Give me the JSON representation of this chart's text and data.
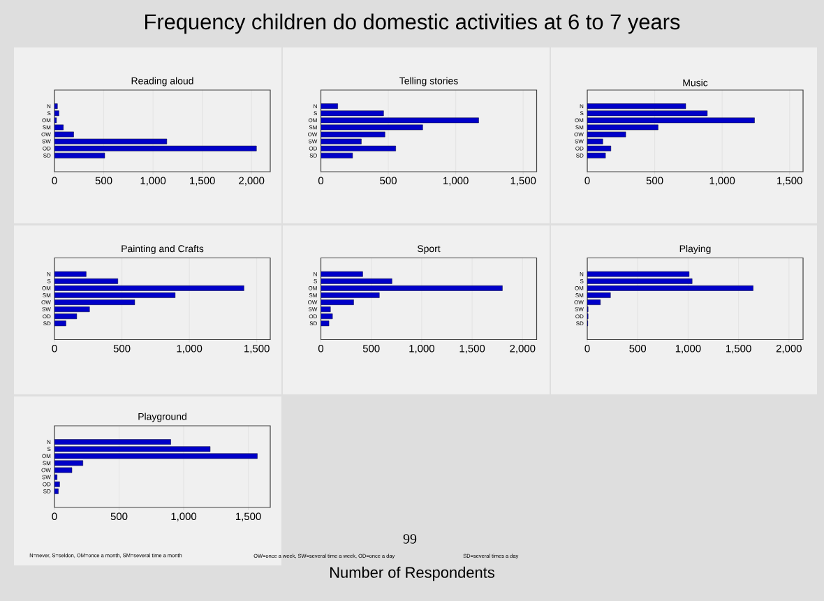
{
  "chart_data": [
    {
      "type": "bar",
      "orientation": "horizontal",
      "title": "Reading aloud",
      "categories": [
        "N",
        "S",
        "OM",
        "SM",
        "OW",
        "SW",
        "OD",
        "SD"
      ],
      "values": [
        30,
        45,
        20,
        90,
        195,
        1140,
        2050,
        510
      ],
      "color": "#0000c8",
      "xlim": [
        0,
        2190
      ],
      "xticks": [
        0,
        500,
        {
          "value": 1000,
          "label": "1,000"
        },
        {
          "value": 1500,
          "label": "1,500"
        },
        {
          "value": 2000,
          "label": "2,000"
        }
      ],
      "grid": "x"
    },
    {
      "type": "bar",
      "orientation": "horizontal",
      "title": "Telling stories",
      "categories": [
        "N",
        "S",
        "OM",
        "SM",
        "OW",
        "SW",
        "OD",
        "SD"
      ],
      "values": [
        125,
        465,
        1170,
        755,
        475,
        300,
        555,
        235
      ],
      "color": "#0000c8",
      "xlim": [
        0,
        1600
      ],
      "xticks": [
        0,
        500,
        {
          "value": 1000,
          "label": "1,000"
        },
        {
          "value": 1500,
          "label": "1,500"
        }
      ],
      "grid": "x"
    },
    {
      "type": "bar",
      "orientation": "horizontal",
      "title": "Music",
      "categories": [
        "N",
        "S",
        "OM",
        "SM",
        "OW",
        "SW",
        "OD",
        "SD"
      ],
      "values": [
        730,
        890,
        1240,
        525,
        285,
        115,
        175,
        135
      ],
      "color": "#0000c8",
      "xlim": [
        0,
        1600
      ],
      "xticks": [
        0,
        500,
        {
          "value": 1000,
          "label": "1,000"
        },
        {
          "value": 1500,
          "label": "1,500"
        }
      ],
      "grid": "x"
    },
    {
      "type": "bar",
      "orientation": "horizontal",
      "title": "Painting and Crafts",
      "categories": [
        "N",
        "S",
        "OM",
        "SM",
        "OW",
        "SW",
        "OD",
        "SD"
      ],
      "values": [
        235,
        470,
        1405,
        895,
        595,
        260,
        165,
        85
      ],
      "color": "#0000c8",
      "xlim": [
        0,
        1600
      ],
      "xticks": [
        0,
        500,
        {
          "value": 1000,
          "label": "1,000"
        },
        {
          "value": 1500,
          "label": "1,500"
        }
      ],
      "grid": "x"
    },
    {
      "type": "bar",
      "orientation": "horizontal",
      "title": "Sport",
      "categories": [
        "N",
        "S",
        "OM",
        "SM",
        "OW",
        "SW",
        "OD",
        "SD"
      ],
      "values": [
        415,
        705,
        1800,
        580,
        325,
        95,
        115,
        80
      ],
      "color": "#0000c8",
      "xlim": [
        0,
        2140
      ],
      "xticks": [
        0,
        500,
        {
          "value": 1000,
          "label": "1,000"
        },
        {
          "value": 1500,
          "label": "1,500"
        },
        {
          "value": 2000,
          "label": "2,000"
        }
      ],
      "grid": "x"
    },
    {
      "type": "bar",
      "orientation": "horizontal",
      "title": "Playing",
      "categories": [
        "N",
        "S",
        "OM",
        "SM",
        "OW",
        "SW",
        "OD",
        "SD"
      ],
      "values": [
        1010,
        1040,
        1645,
        230,
        130,
        8,
        8,
        5
      ],
      "color": "#0000c8",
      "xlim": [
        0,
        2140
      ],
      "xticks": [
        0,
        500,
        {
          "value": 1000,
          "label": "1,000"
        },
        {
          "value": 1500,
          "label": "1,500"
        },
        {
          "value": 2000,
          "label": "2,000"
        }
      ],
      "grid": "x"
    },
    {
      "type": "bar",
      "orientation": "horizontal",
      "title": "Playground",
      "categories": [
        "N",
        "S",
        "OM",
        "SM",
        "OW",
        "SW",
        "OD",
        "SD"
      ],
      "values": [
        900,
        1205,
        1570,
        220,
        135,
        20,
        40,
        30
      ],
      "color": "#0000c8",
      "xlim": [
        0,
        1670
      ],
      "xticks": [
        0,
        500,
        {
          "value": 1000,
          "label": "1,000"
        },
        {
          "value": 1500,
          "label": "1,500"
        }
      ],
      "grid": "x"
    },
    {
      "type": "other",
      "title": "Frequency children do domestic activities at 6 to 7 years",
      "xlabel": "Number of Respondents",
      "annotations": [
        "N=never, S=seldon, OM=once a month, SM=several time a month",
        "OW=once a week, SW=several time a week, OD=once a day",
        "SD=several times a day",
        "99"
      ]
    }
  ]
}
